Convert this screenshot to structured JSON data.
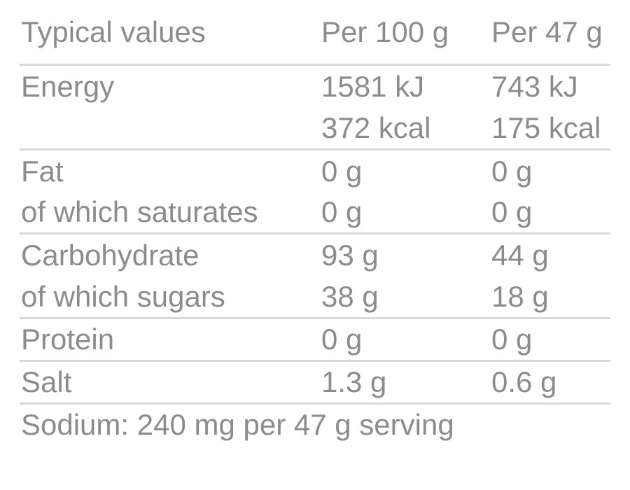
{
  "colors": {
    "text": "#8C8C8C",
    "rule": "#D8D8D8",
    "background": "#FFFFFF"
  },
  "table": {
    "header": {
      "label": "Typical values",
      "per100": "Per 100 g",
      "per47": "Per 47 g"
    },
    "rows": [
      {
        "label": "Energy",
        "per100": "1581 kJ",
        "per47": "743 kJ"
      },
      {
        "label": "",
        "per100": "372 kcal",
        "per47": "175 kcal"
      },
      {
        "label": "Fat",
        "per100": "0 g",
        "per47": "0 g"
      },
      {
        "label": "of which saturates",
        "per100": "0 g",
        "per47": "0 g"
      },
      {
        "label": "Carbohydrate",
        "per100": "93 g",
        "per47": "44 g"
      },
      {
        "label": "of which sugars",
        "per100": "38 g",
        "per47": "18 g"
      },
      {
        "label": "Protein",
        "per100": "0 g",
        "per47": "0 g"
      },
      {
        "label": "Salt",
        "per100": "1.3 g",
        "per47": "0.6 g"
      }
    ],
    "footer_note": "Sodium: 240 mg per 47 g serving"
  }
}
